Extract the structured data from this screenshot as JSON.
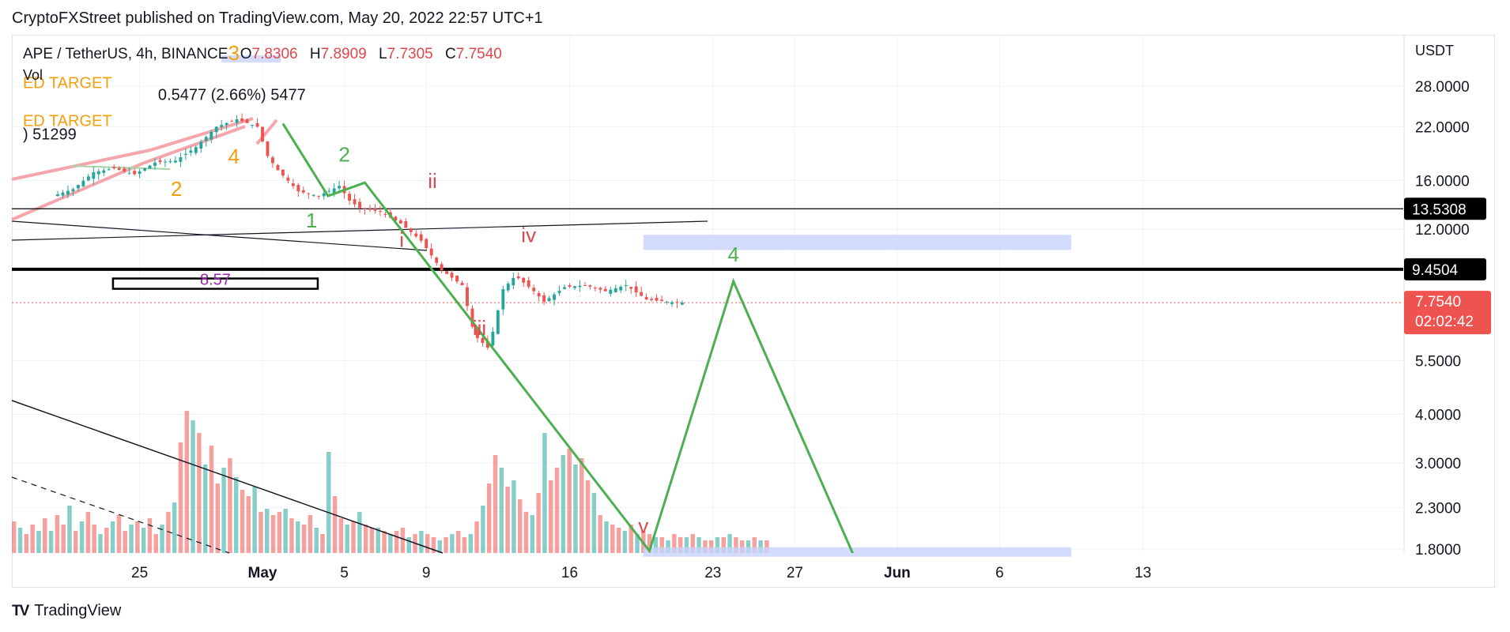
{
  "header": {
    "published": "CryptoFXStreet published on TradingView.com, May 20, 2022 22:57 UTC+1"
  },
  "legend": {
    "symbol": "APE / TetherUS, 4h, BINANCE",
    "open_key": "O",
    "open": "7.8306",
    "high_key": "H",
    "high": "7.8909",
    "low_key": "L",
    "low": "7.7305",
    "close_key": "C",
    "close": "7.7540",
    "volume_label": "Vol"
  },
  "footer": {
    "brand": "TradingView"
  },
  "colors": {
    "up": "#26a69a",
    "down": "#ef5350",
    "wave_green": "#4caf50",
    "wave_red": "#e0474c",
    "orange": "#f59e0b",
    "zone_blue": "#c9d3fb",
    "purple": "#9c27b0",
    "price_tag": "#ef5350"
  },
  "chart_data": {
    "type": "candlestick",
    "price_scale": "log",
    "currency_label": "USDT",
    "y_ticks": [
      "28.0000",
      "22.0000",
      "16.0000",
      "12.0000",
      "5.5000",
      "4.0000",
      "3.0000",
      "2.3000",
      "1.8000"
    ],
    "x_ticks": [
      "25",
      "May",
      "5",
      "9",
      "16",
      "23",
      "27",
      "Jun",
      "6",
      "13"
    ],
    "price_tags": [
      {
        "label": "13.5308",
        "value": 13.5308,
        "style": "dark"
      },
      {
        "label": "9.4504",
        "value": 9.4504,
        "style": "dark"
      },
      {
        "label": "7.7540",
        "sub": "02:02:42",
        "value": 7.754,
        "style": "red"
      }
    ],
    "horizontal_lines": [
      {
        "value": 13.5308,
        "weight": "thin"
      },
      {
        "value": 9.4504,
        "weight": "thick"
      }
    ],
    "anchor_close": 7.754,
    "price_path": [
      {
        "day": -10,
        "price": 14.6
      },
      {
        "day": -9,
        "price": 15.2
      },
      {
        "day": -8,
        "price": 16.8
      },
      {
        "day": -7,
        "price": 17.2
      },
      {
        "day": -6,
        "price": 16.6
      },
      {
        "day": -5,
        "price": 17.8
      },
      {
        "day": -4,
        "price": 18.0
      },
      {
        "day": -3,
        "price": 19.5
      },
      {
        "day": -2,
        "price": 22.0
      },
      {
        "day": -1,
        "price": 23.0
      },
      {
        "day": 0,
        "price": 22.0
      },
      {
        "day": 0.5,
        "price": 18.5
      },
      {
        "day": 1,
        "price": 17.0
      },
      {
        "day": 2,
        "price": 15.0
      },
      {
        "day": 3,
        "price": 14.6
      },
      {
        "day": 4,
        "price": 15.5
      },
      {
        "day": 4.5,
        "price": 14.2
      },
      {
        "day": 5,
        "price": 13.6
      },
      {
        "day": 6,
        "price": 13.3
      },
      {
        "day": 7,
        "price": 12.4
      },
      {
        "day": 8,
        "price": 11.2
      },
      {
        "day": 9,
        "price": 9.4
      },
      {
        "day": 10,
        "price": 8.6
      },
      {
        "day": 10.6,
        "price": 6.4
      },
      {
        "day": 11.3,
        "price": 5.9
      },
      {
        "day": 12,
        "price": 8.4
      },
      {
        "day": 12.6,
        "price": 9.1
      },
      {
        "day": 13.5,
        "price": 8.3
      },
      {
        "day": 14,
        "price": 7.8
      },
      {
        "day": 15,
        "price": 8.5
      },
      {
        "day": 16,
        "price": 8.6
      },
      {
        "day": 17,
        "price": 8.3
      },
      {
        "day": 18,
        "price": 8.6
      },
      {
        "day": 19,
        "price": 7.9
      },
      {
        "day": 20,
        "price": 7.8
      },
      {
        "day": 20.6,
        "price": 7.754
      }
    ],
    "projection_path": [
      {
        "day": 1,
        "price": 22.4
      },
      {
        "day": 3.2,
        "price": 14.6
      },
      {
        "day": 5,
        "price": 15.8
      },
      {
        "day": 18.9,
        "price": 1.78
      },
      {
        "day": 23,
        "price": 8.8
      },
      {
        "day": 28.9,
        "price": 1.72
      }
    ],
    "zones": [
      {
        "day_from": 18.6,
        "day_to": 39.5,
        "price_from": 10.6,
        "price_to": 11.6
      },
      {
        "day_from": -2,
        "day_to": 0.9,
        "price_from": 32.2,
        "price_to": 33.6
      },
      {
        "day_from": 18.6,
        "day_to": 39.5,
        "price_from": 1.72,
        "price_to": 1.82
      }
    ],
    "boxes": [
      {
        "label": "8.57",
        "day_from": -7.3,
        "day_to": 2.7,
        "price_from": 8.42,
        "price_to": 8.95
      }
    ],
    "wave_labels": [
      {
        "text": "3",
        "day": -1.4,
        "price": 32.7,
        "color": "orange"
      },
      {
        "text": "4",
        "day": -1.4,
        "price": 17.7,
        "color": "orange"
      },
      {
        "text": "2",
        "day": -4.2,
        "price": 14.6,
        "color": "orange"
      },
      {
        "text": "1",
        "day": 2.4,
        "price": 12.1,
        "color": "wave_green"
      },
      {
        "text": "2",
        "day": 4.0,
        "price": 17.9,
        "color": "wave_green"
      },
      {
        "text": "4",
        "day": 23,
        "price": 9.9,
        "color": "wave_green"
      },
      {
        "text": "i",
        "day": 6.8,
        "price": 10.8,
        "color": "wave_red"
      },
      {
        "text": "ii",
        "day": 8.3,
        "price": 15.3,
        "color": "wave_red"
      },
      {
        "text": "iii",
        "day": 10.6,
        "price": 6.4,
        "color": "wave_red"
      },
      {
        "text": "iv",
        "day": 13,
        "price": 11.1,
        "color": "wave_red"
      },
      {
        "text": "v",
        "day": 18.6,
        "price": 1.98,
        "color": "wave_red"
      }
    ],
    "annotations": [
      {
        "text": "ED TARGET",
        "day": -11.7,
        "price": 27.7,
        "color": "orange"
      },
      {
        "text": "ED TARGET",
        "day": -11.7,
        "price": 22.1,
        "color": "orange"
      },
      {
        "text": "0.5477 (2.66%) 5477",
        "day": -5.1,
        "price": 25.8,
        "color": "black"
      },
      {
        "text": ") 51299",
        "day": -11.7,
        "price": 20.4,
        "color": "black"
      }
    ],
    "volume_bars": [
      0.1,
      0.08,
      0.06,
      0.09,
      0.07,
      0.11,
      0.07,
      0.12,
      0.09,
      0.15,
      0.07,
      0.1,
      0.13,
      0.09,
      0.06,
      0.08,
      0.1,
      0.12,
      0.07,
      0.09,
      0.1,
      0.08,
      0.11,
      0.06,
      0.09,
      0.13,
      0.16,
      0.35,
      0.45,
      0.42,
      0.38,
      0.28,
      0.34,
      0.22,
      0.27,
      0.3,
      0.24,
      0.2,
      0.18,
      0.21,
      0.13,
      0.14,
      0.12,
      0.13,
      0.14,
      0.11,
      0.1,
      0.09,
      0.12,
      0.08,
      0.06,
      0.32,
      0.18,
      0.11,
      0.09,
      0.1,
      0.13,
      0.09,
      0.08,
      0.08,
      0.07,
      0.06,
      0.07,
      0.08,
      0.05,
      0.06,
      0.07,
      0.06,
      0.05,
      0.04,
      0.05,
      0.06,
      0.07,
      0.05,
      0.06,
      0.1,
      0.15,
      0.22,
      0.31,
      0.27,
      0.21,
      0.23,
      0.17,
      0.13,
      0.12,
      0.19,
      0.38,
      0.23,
      0.27,
      0.31,
      0.33,
      0.28,
      0.3,
      0.23,
      0.19,
      0.12,
      0.1,
      0.09,
      0.08,
      0.07,
      0.09,
      0.06,
      0.07,
      0.06,
      0.05,
      0.05,
      0.04,
      0.06,
      0.05,
      0.05,
      0.06,
      0.05,
      0.04,
      0.04,
      0.05,
      0.05,
      0.06,
      0.05,
      0.04,
      0.04,
      0.05,
      0.04,
      0.04
    ]
  }
}
